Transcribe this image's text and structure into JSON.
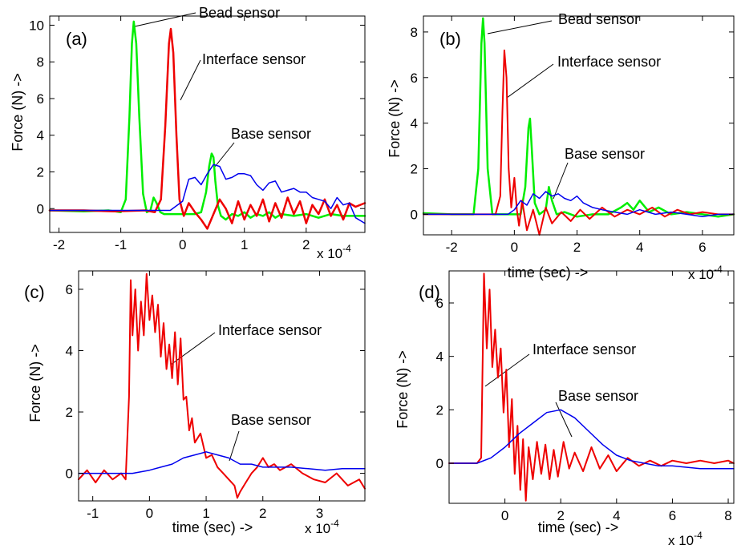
{
  "chart_data": [
    {
      "type": "line",
      "panel_label": "(a)",
      "ylabel": "Force (N) ->",
      "xlabel": "",
      "x_scale_note": "x 10",
      "x_scale_exp": "-4",
      "xlim": [
        -2.15,
        2.95
      ],
      "ylim": [
        -1.3,
        10.5
      ],
      "xticks": [
        -2,
        -1,
        0,
        1,
        2
      ],
      "yticks": [
        0,
        2,
        4,
        6,
        8,
        10
      ],
      "series": [
        {
          "name": "Bead sensor",
          "color": "#00ee00",
          "width": 2.5,
          "x": [
            -2.15,
            -1.6,
            -1.2,
            -1.0,
            -0.92,
            -0.86,
            -0.82,
            -0.79,
            -0.75,
            -0.7,
            -0.64,
            -0.58,
            -0.52,
            -0.47,
            -0.42,
            -0.36,
            -0.3,
            -0.2,
            0,
            0.2,
            0.3,
            0.38,
            0.43,
            0.47,
            0.5,
            0.53,
            0.57,
            0.62,
            0.7,
            0.8,
            0.9,
            1.0,
            1.1,
            1.2,
            1.3,
            1.4,
            1.5,
            1.6,
            1.8,
            2.0,
            2.2,
            2.4,
            2.6,
            2.8,
            2.95
          ],
          "y": [
            -0.1,
            -0.15,
            -0.1,
            -0.2,
            0.5,
            5.0,
            9.0,
            10.2,
            9.0,
            5.0,
            0.8,
            -0.2,
            -0.1,
            0.6,
            0.3,
            -0.2,
            -0.3,
            -0.3,
            -0.3,
            -0.3,
            -0.2,
            0.9,
            2.3,
            3.0,
            2.8,
            1.5,
            0.2,
            -0.4,
            -0.6,
            -0.3,
            -0.4,
            -0.2,
            -0.5,
            -0.3,
            -0.4,
            -0.2,
            -0.5,
            -0.3,
            -0.4,
            -0.3,
            -0.5,
            -0.3,
            -0.4,
            -0.4,
            -0.4
          ]
        },
        {
          "name": "Interface sensor",
          "color": "#ee0000",
          "width": 2.5,
          "x": [
            -2.15,
            -1.6,
            -1.1,
            -0.6,
            -0.45,
            -0.35,
            -0.28,
            -0.22,
            -0.19,
            -0.15,
            -0.1,
            -0.05,
            0.02,
            0.1,
            0.2,
            0.3,
            0.4,
            0.5,
            0.6,
            0.7,
            0.8,
            0.9,
            1.0,
            1.1,
            1.2,
            1.3,
            1.4,
            1.5,
            1.6,
            1.7,
            1.8,
            1.9,
            2.0,
            2.1,
            2.2,
            2.3,
            2.4,
            2.5,
            2.6,
            2.7,
            2.8,
            2.95
          ],
          "y": [
            -0.1,
            -0.1,
            -0.15,
            -0.1,
            -0.2,
            0.5,
            4.5,
            9.0,
            9.8,
            8.5,
            4.0,
            0.5,
            -0.4,
            0.3,
            -0.2,
            -0.6,
            -1.1,
            -0.3,
            0.5,
            0.0,
            -0.8,
            0.4,
            -0.6,
            0.2,
            -0.4,
            0.5,
            -0.7,
            0.3,
            -0.5,
            0.6,
            -0.3,
            0.4,
            -0.8,
            0.2,
            -0.3,
            0.5,
            -0.4,
            0.2,
            -0.6,
            0.3,
            0.1,
            0.3
          ]
        },
        {
          "name": "Base sensor",
          "color": "#0000ee",
          "width": 1.5,
          "x": [
            -2.15,
            -1.0,
            -0.2,
            0.0,
            0.1,
            0.2,
            0.3,
            0.4,
            0.5,
            0.6,
            0.7,
            0.8,
            0.9,
            1.0,
            1.1,
            1.2,
            1.3,
            1.4,
            1.5,
            1.6,
            1.7,
            1.8,
            1.9,
            2.0,
            2.1,
            2.2,
            2.3,
            2.4,
            2.5,
            2.6,
            2.7,
            2.8,
            2.95
          ],
          "y": [
            -0.1,
            -0.1,
            -0.1,
            0.4,
            1.6,
            1.7,
            1.3,
            1.9,
            2.4,
            2.3,
            1.6,
            1.7,
            1.9,
            1.9,
            1.8,
            1.3,
            1.0,
            1.4,
            1.5,
            0.9,
            1.0,
            1.1,
            0.9,
            0.9,
            0.6,
            0.5,
            0.4,
            0.0,
            0.6,
            0.2,
            0.3,
            -0.5,
            -0.8
          ]
        }
      ],
      "annotations": [
        "Bead sensor",
        "Interface sensor",
        "Base sensor"
      ]
    },
    {
      "type": "line",
      "panel_label": "(b)",
      "ylabel": "Force (N) ->",
      "xlabel": "time (sec) ->",
      "x_scale_note": "x 10",
      "x_scale_exp": "-4",
      "xlim": [
        -2.9,
        7.0
      ],
      "ylim": [
        -0.9,
        8.7
      ],
      "xticks": [
        -2,
        0,
        2,
        4,
        6
      ],
      "yticks": [
        0,
        2,
        4,
        6,
        8
      ],
      "series": [
        {
          "name": "Bead sensor",
          "color": "#00ee00",
          "width": 2.5,
          "x": [
            -2.9,
            -2.0,
            -1.3,
            -1.15,
            -1.05,
            -1.0,
            -0.95,
            -0.85,
            -0.7,
            -0.5,
            -0.2,
            0.2,
            0.35,
            0.45,
            0.5,
            0.55,
            0.65,
            0.8,
            1.0,
            1.1,
            1.2,
            1.35,
            1.6,
            2.0,
            2.5,
            3.0,
            3.4,
            3.6,
            3.8,
            4.0,
            4.3,
            4.6,
            5.0,
            5.5,
            6.0,
            6.5,
            7.0
          ],
          "y": [
            0.05,
            0.0,
            0.0,
            2.0,
            7.5,
            8.6,
            7.5,
            2.0,
            0.0,
            0.0,
            0.0,
            0.0,
            1.2,
            3.8,
            4.2,
            3.0,
            0.5,
            0.0,
            0.2,
            1.2,
            0.6,
            0.0,
            0.1,
            -0.1,
            0.0,
            0.0,
            0.3,
            0.5,
            0.2,
            0.6,
            0.1,
            0.3,
            0.0,
            0.1,
            0.0,
            -0.1,
            0.0
          ]
        },
        {
          "name": "Interface sensor",
          "color": "#ee0000",
          "width": 2.0,
          "x": [
            -2.9,
            -2.0,
            -1.0,
            -0.6,
            -0.45,
            -0.38,
            -0.32,
            -0.25,
            -0.18,
            -0.1,
            0.0,
            0.08,
            0.15,
            0.25,
            0.4,
            0.6,
            0.8,
            1.0,
            1.2,
            1.5,
            1.8,
            2.1,
            2.4,
            2.8,
            3.2,
            3.6,
            4.0,
            4.4,
            4.8,
            5.2,
            5.6,
            6.0,
            6.5,
            7.0
          ],
          "y": [
            0.0,
            0.0,
            0.0,
            0.0,
            0.8,
            4.5,
            7.2,
            6.0,
            2.0,
            0.3,
            1.6,
            0.2,
            -0.5,
            0.6,
            -0.7,
            0.2,
            -0.9,
            0.3,
            -0.4,
            0.1,
            -0.3,
            0.2,
            -0.2,
            0.3,
            -0.1,
            0.2,
            0.0,
            0.3,
            -0.1,
            0.2,
            0.0,
            0.1,
            0.0,
            0.0
          ]
        },
        {
          "name": "Base sensor",
          "color": "#0000ee",
          "width": 1.5,
          "x": [
            -2.9,
            -1.0,
            -0.2,
            0.0,
            0.2,
            0.4,
            0.6,
            0.8,
            1.0,
            1.2,
            1.4,
            1.6,
            1.8,
            2.0,
            2.2,
            2.5,
            2.8,
            3.2,
            3.6,
            4.0,
            4.5,
            5.0,
            5.5,
            6.0,
            6.5,
            7.0
          ],
          "y": [
            0.0,
            0.0,
            0.0,
            0.2,
            0.6,
            0.4,
            0.9,
            0.7,
            1.0,
            0.8,
            0.9,
            0.7,
            0.6,
            0.8,
            0.5,
            0.3,
            0.2,
            0.1,
            0.0,
            0.2,
            0.0,
            0.1,
            0.0,
            -0.1,
            0.0,
            0.0
          ]
        }
      ],
      "annotations": [
        "Bead sensor",
        "Interface sensor",
        "Base sensor"
      ]
    },
    {
      "type": "line",
      "panel_label": "(c)",
      "ylabel": "Force (N) ->",
      "xlabel": "time (sec) ->",
      "x_scale_note": "x 10",
      "x_scale_exp": "-4",
      "xlim": [
        -1.25,
        3.8
      ],
      "ylim": [
        -0.9,
        6.6
      ],
      "xticks": [
        -1,
        0,
        1,
        2,
        3
      ],
      "yticks": [
        0,
        2,
        4,
        6
      ],
      "series": [
        {
          "name": "Interface sensor",
          "color": "#ee0000",
          "width": 2.0,
          "x": [
            -1.25,
            -1.1,
            -0.95,
            -0.8,
            -0.65,
            -0.5,
            -0.42,
            -0.36,
            -0.33,
            -0.3,
            -0.25,
            -0.2,
            -0.15,
            -0.1,
            -0.05,
            0.0,
            0.05,
            0.1,
            0.15,
            0.2,
            0.25,
            0.3,
            0.35,
            0.4,
            0.45,
            0.5,
            0.55,
            0.6,
            0.65,
            0.7,
            0.75,
            0.8,
            0.9,
            1.0,
            1.1,
            1.2,
            1.3,
            1.4,
            1.5,
            1.55,
            1.6,
            1.7,
            1.8,
            1.9,
            2.0,
            2.1,
            2.2,
            2.3,
            2.5,
            2.7,
            2.9,
            3.1,
            3.3,
            3.5,
            3.7,
            3.8
          ],
          "y": [
            -0.2,
            0.1,
            -0.3,
            0.1,
            -0.2,
            0.0,
            -0.2,
            2.5,
            6.3,
            4.5,
            6.0,
            4.0,
            5.6,
            4.5,
            6.5,
            5.0,
            5.8,
            4.6,
            5.5,
            3.8,
            4.9,
            3.4,
            4.2,
            3.1,
            4.6,
            2.9,
            4.4,
            2.4,
            2.5,
            1.4,
            1.8,
            1.0,
            1.3,
            0.5,
            0.6,
            0.2,
            0.0,
            -0.2,
            -0.4,
            -0.8,
            -0.6,
            -0.3,
            0.0,
            0.2,
            0.5,
            0.2,
            0.3,
            0.1,
            0.3,
            0.0,
            -0.2,
            -0.3,
            0.0,
            -0.4,
            -0.2,
            -0.5
          ]
        },
        {
          "name": "Base sensor",
          "color": "#0000ee",
          "width": 1.5,
          "x": [
            -1.25,
            -0.5,
            -0.3,
            0.0,
            0.2,
            0.4,
            0.6,
            0.8,
            1.0,
            1.2,
            1.4,
            1.6,
            1.8,
            2.0,
            2.2,
            2.5,
            2.8,
            3.1,
            3.4,
            3.8
          ],
          "y": [
            0.0,
            0.0,
            0.0,
            0.1,
            0.2,
            0.3,
            0.5,
            0.6,
            0.7,
            0.6,
            0.5,
            0.3,
            0.3,
            0.2,
            0.2,
            0.2,
            0.15,
            0.1,
            0.15,
            0.15
          ]
        }
      ],
      "annotations": [
        "Interface sensor",
        "Base sensor"
      ]
    },
    {
      "type": "line",
      "panel_label": "(d)",
      "ylabel": "Force (N) ->",
      "xlabel": "time (sec) ->",
      "x_scale_note": "x 10",
      "x_scale_exp": "-4",
      "xlim": [
        -2.0,
        8.2
      ],
      "ylim": [
        -1.5,
        7.2
      ],
      "xticks": [
        0,
        2,
        4,
        6,
        8
      ],
      "yticks": [
        0,
        2,
        4,
        6
      ],
      "series": [
        {
          "name": "Interface sensor",
          "color": "#ee0000",
          "width": 2.0,
          "x": [
            -2.0,
            -1.5,
            -1.0,
            -0.85,
            -0.75,
            -0.65,
            -0.55,
            -0.45,
            -0.35,
            -0.25,
            -0.15,
            -0.05,
            0.05,
            0.15,
            0.25,
            0.35,
            0.45,
            0.55,
            0.65,
            0.75,
            0.85,
            1.0,
            1.15,
            1.3,
            1.45,
            1.6,
            1.75,
            1.9,
            2.1,
            2.3,
            2.5,
            2.8,
            3.1,
            3.4,
            3.7,
            4.0,
            4.4,
            4.8,
            5.2,
            5.6,
            6.0,
            6.5,
            7.0,
            7.5,
            8.0,
            8.2
          ],
          "y": [
            0.0,
            0.0,
            0.0,
            0.2,
            7.1,
            4.3,
            6.5,
            3.6,
            5.0,
            3.2,
            4.3,
            1.9,
            3.5,
            0.6,
            2.4,
            -0.4,
            1.4,
            -1.0,
            0.9,
            -1.4,
            0.6,
            -0.6,
            0.8,
            -0.4,
            0.7,
            -0.6,
            0.5,
            -0.5,
            0.8,
            -0.2,
            0.4,
            -0.3,
            0.6,
            -0.2,
            0.3,
            -0.3,
            0.2,
            -0.1,
            0.1,
            -0.1,
            0.1,
            0.0,
            0.1,
            0.0,
            0.1,
            0.0
          ]
        },
        {
          "name": "Base sensor",
          "color": "#0000ee",
          "width": 1.5,
          "x": [
            -2.0,
            -1.0,
            -0.5,
            0.0,
            0.5,
            1.0,
            1.5,
            2.0,
            2.5,
            3.0,
            3.5,
            4.0,
            4.5,
            5.0,
            5.5,
            6.0,
            6.5,
            7.0,
            7.5,
            8.0,
            8.2
          ],
          "y": [
            0.0,
            0.0,
            0.2,
            0.6,
            1.1,
            1.5,
            1.9,
            2.0,
            1.7,
            1.2,
            0.7,
            0.3,
            0.1,
            0.0,
            -0.1,
            -0.1,
            -0.15,
            -0.2,
            -0.2,
            -0.2,
            -0.2
          ]
        }
      ],
      "annotations": [
        "Interface sensor",
        "Base sensor"
      ]
    }
  ]
}
